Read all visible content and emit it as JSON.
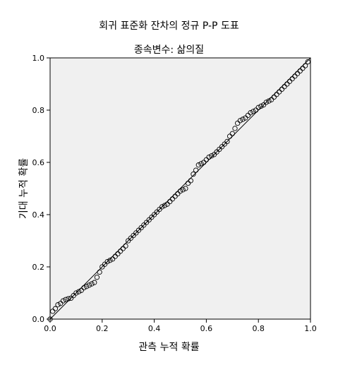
{
  "chart_data": {
    "type": "scatter",
    "title": "회귀 표준화 잔차의 정규 P-P 도표",
    "subtitle": "종속변수: 삶의질",
    "xlabel": "관측 누적 확률",
    "ylabel": "기대 누적 확률",
    "xlim": [
      0.0,
      1.0
    ],
    "ylim": [
      0.0,
      1.0
    ],
    "xticks": [
      "0.0",
      "0.2",
      "0.4",
      "0.6",
      "0.8",
      "1.0"
    ],
    "yticks": [
      "0.0",
      "0.2",
      "0.4",
      "0.6",
      "0.8",
      "1.0"
    ],
    "grid": false,
    "colors": {
      "plot_bg": "#f0f0f0",
      "marker": "#000000",
      "line": "#000000"
    },
    "reference_line": {
      "x": [
        0.0,
        1.0
      ],
      "y": [
        0.0,
        1.0
      ]
    },
    "points": {
      "x": [
        0.0,
        0.01,
        0.02,
        0.03,
        0.04,
        0.05,
        0.06,
        0.07,
        0.08,
        0.09,
        0.1,
        0.11,
        0.12,
        0.13,
        0.14,
        0.15,
        0.16,
        0.17,
        0.18,
        0.19,
        0.2,
        0.21,
        0.22,
        0.23,
        0.24,
        0.25,
        0.26,
        0.27,
        0.28,
        0.29,
        0.3,
        0.31,
        0.32,
        0.33,
        0.34,
        0.35,
        0.36,
        0.37,
        0.38,
        0.39,
        0.4,
        0.41,
        0.42,
        0.43,
        0.44,
        0.45,
        0.46,
        0.47,
        0.48,
        0.49,
        0.5,
        0.51,
        0.52,
        0.53,
        0.54,
        0.55,
        0.56,
        0.57,
        0.58,
        0.59,
        0.6,
        0.61,
        0.62,
        0.63,
        0.64,
        0.65,
        0.66,
        0.67,
        0.68,
        0.69,
        0.7,
        0.71,
        0.72,
        0.73,
        0.74,
        0.75,
        0.76,
        0.77,
        0.78,
        0.79,
        0.8,
        0.81,
        0.82,
        0.83,
        0.84,
        0.85,
        0.86,
        0.87,
        0.88,
        0.89,
        0.9,
        0.91,
        0.92,
        0.93,
        0.94,
        0.95,
        0.96,
        0.97,
        0.98,
        0.99
      ],
      "y": [
        0.0,
        0.03,
        0.04,
        0.055,
        0.06,
        0.07,
        0.075,
        0.078,
        0.08,
        0.09,
        0.1,
        0.105,
        0.11,
        0.12,
        0.125,
        0.13,
        0.135,
        0.14,
        0.16,
        0.18,
        0.2,
        0.21,
        0.22,
        0.225,
        0.23,
        0.24,
        0.25,
        0.26,
        0.27,
        0.28,
        0.3,
        0.31,
        0.32,
        0.33,
        0.34,
        0.35,
        0.36,
        0.37,
        0.38,
        0.39,
        0.4,
        0.41,
        0.42,
        0.43,
        0.435,
        0.44,
        0.45,
        0.46,
        0.47,
        0.48,
        0.49,
        0.495,
        0.5,
        0.52,
        0.53,
        0.555,
        0.57,
        0.59,
        0.595,
        0.6,
        0.61,
        0.62,
        0.625,
        0.63,
        0.64,
        0.65,
        0.66,
        0.67,
        0.68,
        0.7,
        0.71,
        0.73,
        0.75,
        0.76,
        0.765,
        0.77,
        0.78,
        0.79,
        0.795,
        0.8,
        0.81,
        0.815,
        0.82,
        0.83,
        0.835,
        0.84,
        0.85,
        0.86,
        0.87,
        0.88,
        0.89,
        0.9,
        0.91,
        0.92,
        0.93,
        0.94,
        0.95,
        0.96,
        0.97,
        0.985
      ]
    }
  }
}
